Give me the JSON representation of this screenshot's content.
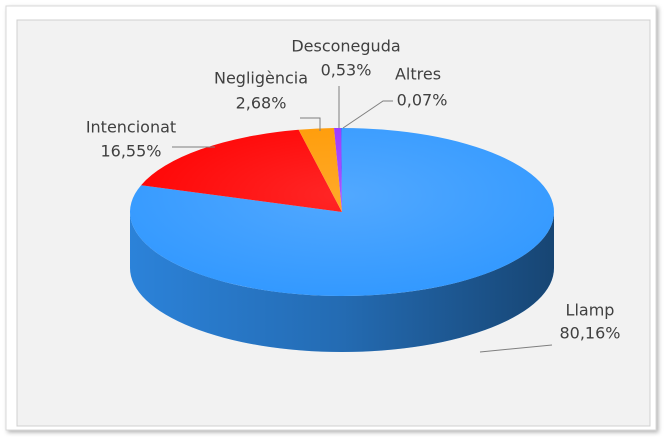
{
  "chart_data": {
    "type": "pie",
    "categories": [
      "Llamp",
      "Intencionat",
      "Negligència",
      "Desconeguda",
      "Altres"
    ],
    "values": [
      80.16,
      16.55,
      2.68,
      0.53,
      0.07
    ],
    "value_labels": [
      "80,16%",
      "16,55%",
      "2,68%",
      "0,53%",
      "0,07%"
    ],
    "colors": [
      "#3399ff",
      "#ff0000",
      "#ff9900",
      "#9933ff",
      "#3366ff"
    ]
  }
}
